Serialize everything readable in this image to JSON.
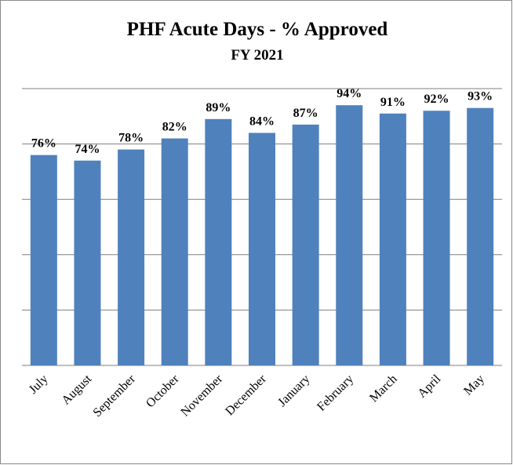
{
  "chart_data": {
    "type": "bar",
    "title": "PHF Acute Days - % Approved",
    "subtitle": "FY 2021",
    "categories": [
      "July",
      "August",
      "September",
      "October",
      "November",
      "December",
      "January",
      "February",
      "March",
      "April",
      "May"
    ],
    "values": [
      76,
      74,
      78,
      82,
      89,
      84,
      87,
      94,
      91,
      92,
      93
    ],
    "value_labels": [
      "76%",
      "74%",
      "78%",
      "82%",
      "89%",
      "84%",
      "87%",
      "94%",
      "91%",
      "92%",
      "93%"
    ],
    "color": "#4f81bd",
    "ylim": [
      0,
      100
    ],
    "yticks": [
      0,
      20,
      40,
      60,
      80,
      100
    ],
    "grid": true
  }
}
